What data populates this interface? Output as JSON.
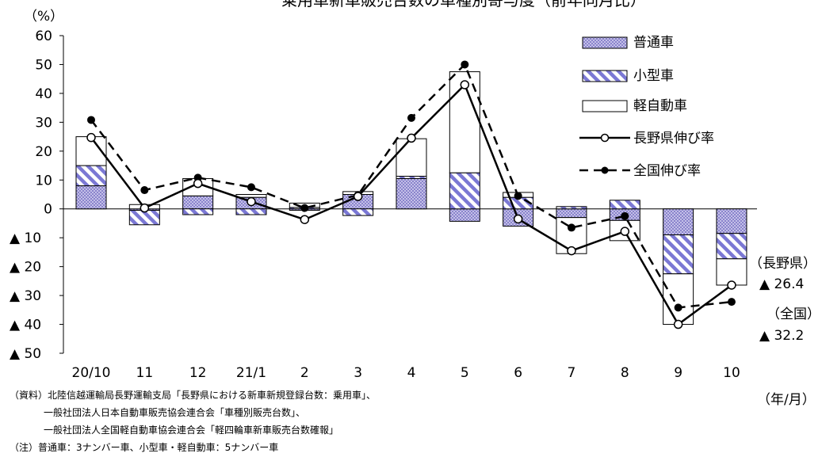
{
  "chart_data": {
    "type": "bar",
    "title": "乗用車新車販売台数の車種別寄与度（前年同月比）",
    "ylabel": "（%）",
    "xlabel": "（年/月）",
    "ylim": [
      -50,
      60
    ],
    "y_ticks": [
      {
        "value": 60,
        "label": "60"
      },
      {
        "value": 50,
        "label": "50"
      },
      {
        "value": 40,
        "label": "40"
      },
      {
        "value": 30,
        "label": "30"
      },
      {
        "value": 20,
        "label": "20"
      },
      {
        "value": 10,
        "label": "10"
      },
      {
        "value": 0,
        "label": "0"
      },
      {
        "value": -10,
        "label": "▲ 10"
      },
      {
        "value": -20,
        "label": "▲ 20"
      },
      {
        "value": -30,
        "label": "▲ 30"
      },
      {
        "value": -40,
        "label": "▲ 40"
      },
      {
        "value": -50,
        "label": "▲ 50"
      }
    ],
    "categories": [
      "20/10",
      "11",
      "12",
      "21/1",
      "2",
      "3",
      "4",
      "5",
      "6",
      "7",
      "8",
      "9",
      "10"
    ],
    "series": [
      {
        "name": "普通車",
        "kind": "bar",
        "values": [
          8,
          -0.5,
          4.5,
          4,
          -0.5,
          5,
          10.5,
          -4.3,
          -6,
          -3,
          -4,
          -9,
          -8.5
        ]
      },
      {
        "name": "小型車",
        "kind": "bar",
        "values": [
          7,
          -5,
          -2,
          -2,
          0.5,
          -2.3,
          0.8,
          12.5,
          4,
          0.8,
          3,
          -13.5,
          -8.8
        ]
      },
      {
        "name": "軽自動車",
        "kind": "bar",
        "values": [
          10,
          1.5,
          6,
          1,
          1.5,
          1,
          13,
          35,
          1.7,
          -12.5,
          -7,
          -17.5,
          -9.1
        ]
      },
      {
        "name": "長野県伸び率",
        "kind": "line",
        "values": [
          24.7,
          0.3,
          8.8,
          2.5,
          -3.7,
          4.3,
          24.5,
          43,
          -3.5,
          -14.5,
          -7.8,
          -40,
          -26.4
        ]
      },
      {
        "name": "全国伸び率",
        "kind": "line",
        "values": [
          30.8,
          6.5,
          10.8,
          7.5,
          0.3,
          4.8,
          31.5,
          50,
          4.5,
          -6.5,
          -2.5,
          -34.2,
          -32.2
        ]
      }
    ],
    "end_labels": [
      {
        "name": "（長野県）",
        "value": "▲ 26.4"
      },
      {
        "name": "（全国）",
        "value": "▲ 32.2"
      }
    ],
    "legend_position": "top-right",
    "grid": false
  },
  "notes": {
    "line1": "（資料）北陸信越運輸局長野運輸支局「長野県における新車新規登録台数：乗用車」、",
    "line2": "一般社団法人日本自動車販売協会連合会「車種別販売台数」、",
    "line3": "一般社団法人全国軽自動車協会連合会「軽四輪車新車販売台数確報」",
    "line4": "（注）普通車：3ナンバー車、小型車・軽自動車：5ナンバー車"
  },
  "colors": {
    "futsusha": "#a9a3d9",
    "kogata": "#7a78d0",
    "kei": "#ffffff",
    "line": "#000000"
  }
}
